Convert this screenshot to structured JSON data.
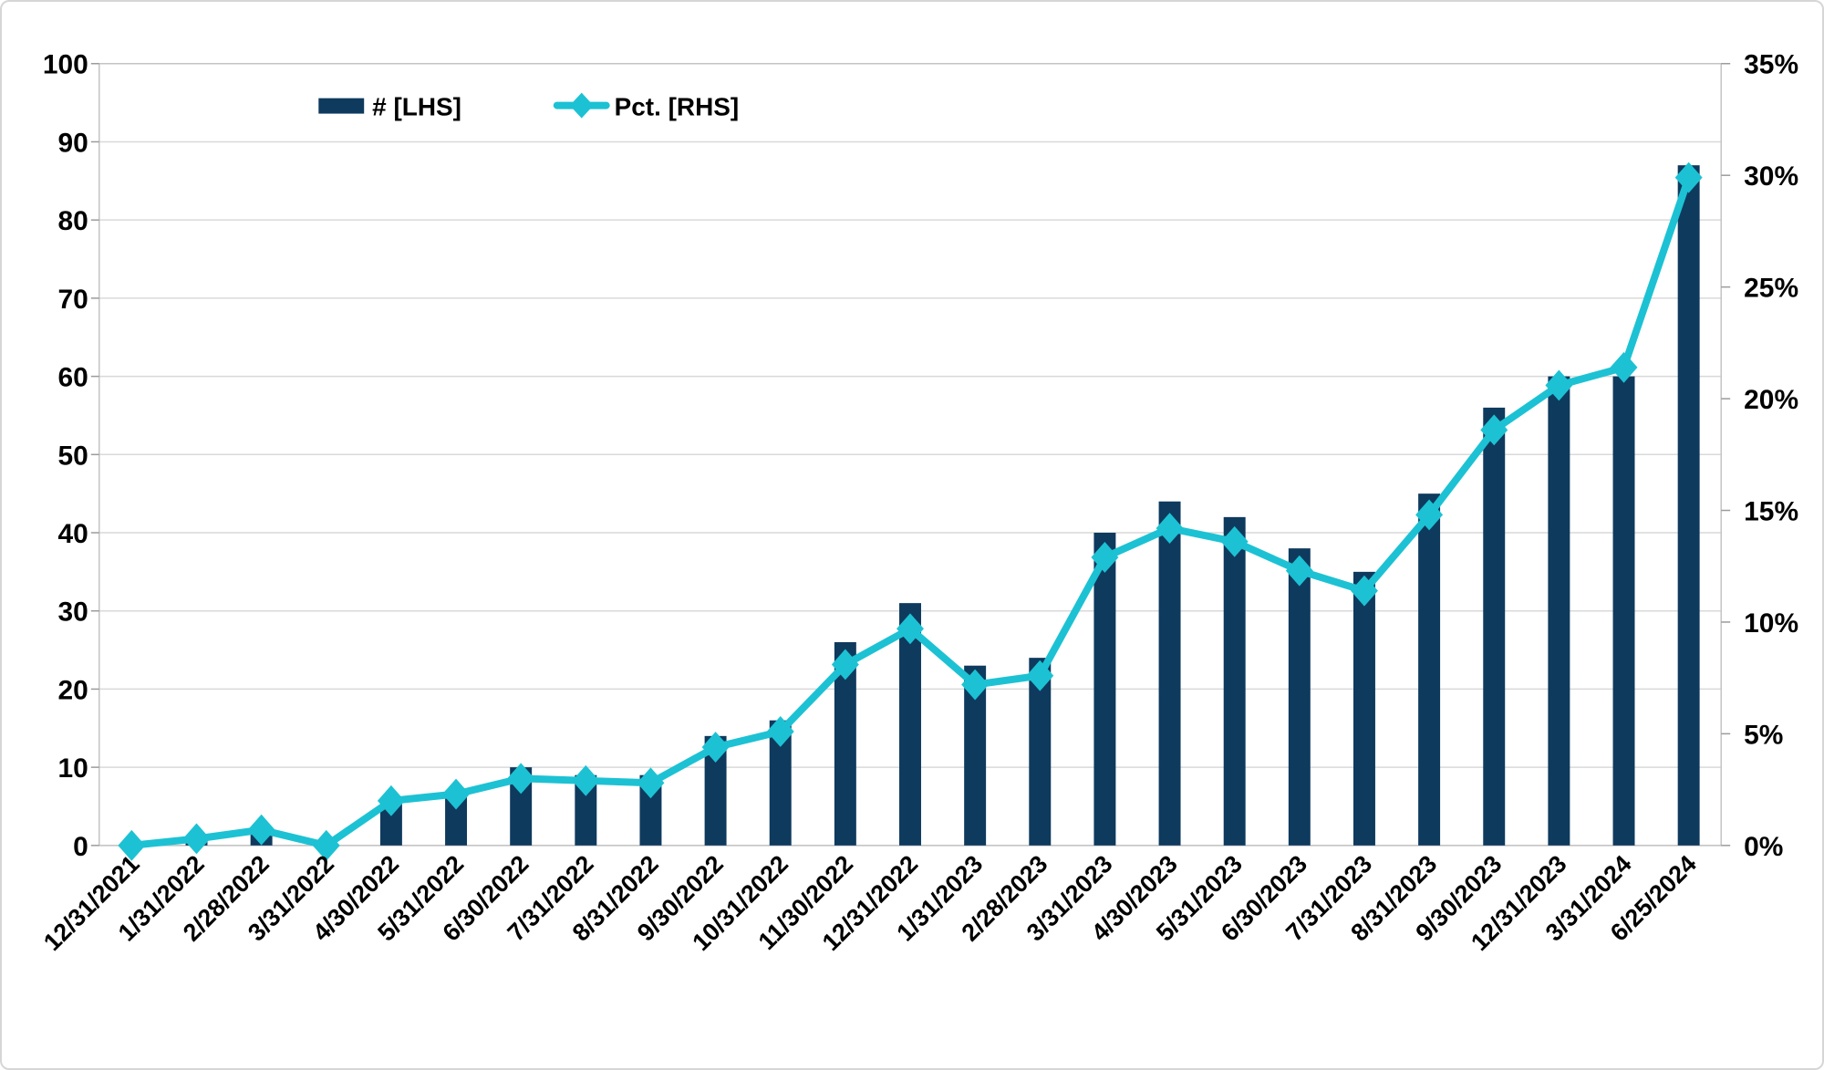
{
  "chart_data": {
    "type": "combo-bar-line",
    "title": "",
    "categories": [
      "12/31/2021",
      "1/31/2022",
      "2/28/2022",
      "3/31/2022",
      "4/30/2022",
      "5/31/2022",
      "6/30/2022",
      "7/31/2022",
      "8/31/2022",
      "9/30/2022",
      "10/31/2022",
      "11/30/2022",
      "12/31/2022",
      "1/31/2023",
      "2/28/2023",
      "3/31/2023",
      "4/30/2023",
      "5/31/2023",
      "6/30/2023",
      "7/31/2023",
      "8/31/2023",
      "9/30/2023",
      "12/31/2023",
      "3/31/2024",
      "6/25/2024"
    ],
    "series": [
      {
        "name": "# [LHS]",
        "type": "bar",
        "axis": "left",
        "color": "#0e3a5e",
        "values": [
          0,
          1,
          2,
          0,
          6,
          7,
          10,
          9,
          9,
          14,
          16,
          26,
          31,
          23,
          24,
          40,
          44,
          42,
          38,
          35,
          45,
          56,
          60,
          60,
          87
        ]
      },
      {
        "name": "Pct. [RHS]",
        "type": "line",
        "axis": "right",
        "color": "#1cc2d3",
        "marker": "diamond",
        "values": [
          0.0,
          0.3,
          0.7,
          0.0,
          2.0,
          2.3,
          3.0,
          2.9,
          2.8,
          4.4,
          5.1,
          8.1,
          9.7,
          7.2,
          7.6,
          12.9,
          14.2,
          13.6,
          12.3,
          11.4,
          14.8,
          18.6,
          20.6,
          21.4,
          29.9
        ]
      }
    ],
    "left_axis": {
      "min": 0,
      "max": 100,
      "step": 10,
      "tick_labels": [
        "0",
        "10",
        "20",
        "30",
        "40",
        "50",
        "60",
        "70",
        "80",
        "90",
        "100"
      ]
    },
    "right_axis": {
      "min": 0,
      "max": 35,
      "step": 5,
      "tick_labels": [
        "0%",
        "5%",
        "10%",
        "15%",
        "20%",
        "25%",
        "30%",
        "35%"
      ]
    },
    "legend": {
      "position": "top",
      "items": [
        "# [LHS]",
        "Pct. [RHS]"
      ]
    },
    "grid": true,
    "colors": {
      "background": "#ffffff",
      "gridline": "#d9d9d9",
      "plot_border": "#c4c4c4",
      "tick": "#9b9b9b",
      "text": "#000000",
      "card_border": "#d6d6d6"
    }
  }
}
